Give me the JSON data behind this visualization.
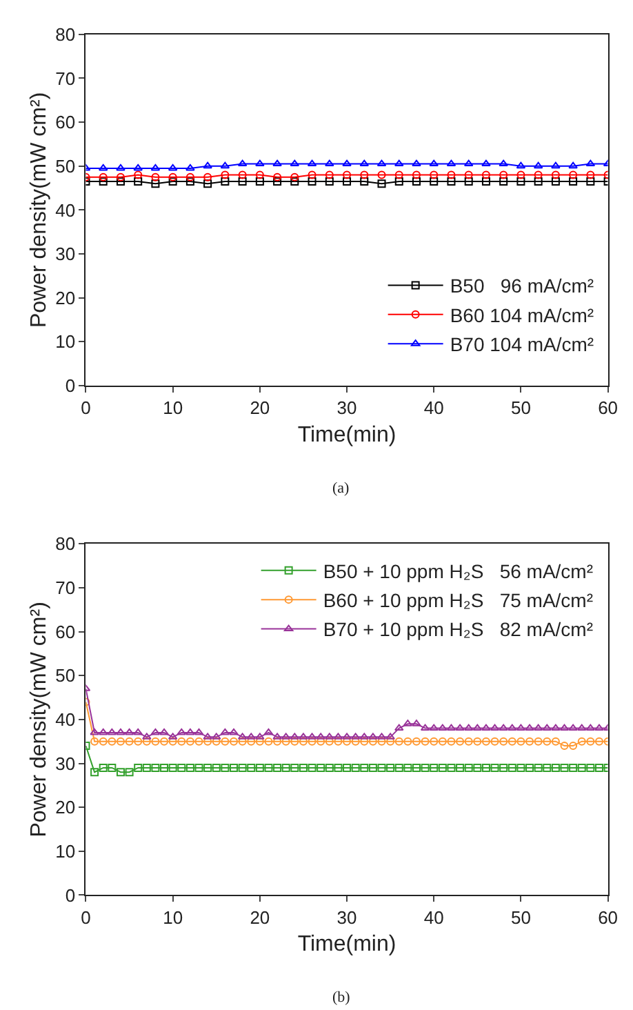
{
  "chart_data": [
    {
      "type": "line",
      "xlabel": "Time(min)",
      "ylabel": "Power density(mW cm²)",
      "xlim": [
        0,
        60
      ],
      "xticks": [
        0,
        10,
        20,
        30,
        40,
        50,
        60
      ],
      "ylim": [
        0,
        80
      ],
      "yticks": [
        0,
        10,
        20,
        30,
        40,
        50,
        60,
        70,
        80
      ],
      "legend": "bottom right",
      "annotations": [
        "(a)"
      ],
      "x": [
        0,
        2,
        4,
        6,
        8,
        10,
        12,
        14,
        16,
        18,
        20,
        22,
        24,
        26,
        28,
        30,
        32,
        34,
        36,
        38,
        40,
        42,
        44,
        46,
        48,
        50,
        52,
        54,
        56,
        58,
        60
      ],
      "series": [
        {
          "name": "B50   96 mA/cm²",
          "color": "#000000",
          "marker": "square",
          "values": [
            46.5,
            46.5,
            46.5,
            46.5,
            46,
            46.5,
            46.5,
            46,
            46.5,
            46.5,
            46.5,
            46.5,
            46.5,
            46.5,
            46.5,
            46.5,
            46.5,
            46,
            46.5,
            46.5,
            46.5,
            46.5,
            46.5,
            46.5,
            46.5,
            46.5,
            46.5,
            46.5,
            46.5,
            46.5,
            46.5
          ]
        },
        {
          "name": "B60 104 mA/cm²",
          "color": "#ff0000",
          "marker": "circle",
          "values": [
            47.5,
            47.5,
            47.5,
            48,
            47.5,
            47.5,
            47.5,
            47.5,
            48,
            48,
            48,
            47.5,
            47.5,
            48,
            48,
            48,
            48,
            48,
            48,
            48,
            48,
            48,
            48,
            48,
            48,
            48,
            48,
            48,
            48,
            48,
            48
          ]
        },
        {
          "name": "B70 104 mA/cm²",
          "color": "#0000ff",
          "marker": "triangle",
          "values": [
            49.5,
            49.5,
            49.5,
            49.5,
            49.5,
            49.5,
            49.5,
            50,
            50,
            50.5,
            50.5,
            50.5,
            50.5,
            50.5,
            50.5,
            50.5,
            50.5,
            50.5,
            50.5,
            50.5,
            50.5,
            50.5,
            50.5,
            50.5,
            50.5,
            50,
            50,
            50,
            50,
            50.5,
            50.5
          ]
        }
      ]
    },
    {
      "type": "line",
      "xlabel": "Time(min)",
      "ylabel": "Power density(mW cm²)",
      "xlim": [
        0,
        60
      ],
      "xticks": [
        0,
        10,
        20,
        30,
        40,
        50,
        60
      ],
      "ylim": [
        0,
        80
      ],
      "yticks": [
        0,
        10,
        20,
        30,
        40,
        50,
        60,
        70,
        80
      ],
      "legend": "top right",
      "annotations": [
        "(b)"
      ],
      "x": [
        0,
        1,
        2,
        3,
        4,
        5,
        6,
        7,
        8,
        9,
        10,
        11,
        12,
        13,
        14,
        15,
        16,
        17,
        18,
        19,
        20,
        21,
        22,
        23,
        24,
        25,
        26,
        27,
        28,
        29,
        30,
        31,
        32,
        33,
        34,
        35,
        36,
        37,
        38,
        39,
        40,
        41,
        42,
        43,
        44,
        45,
        46,
        47,
        48,
        49,
        50,
        51,
        52,
        53,
        54,
        55,
        56,
        57,
        58,
        59,
        60
      ],
      "series": [
        {
          "name": "B50 + 10 ppm H₂S   56 mA/cm²",
          "color": "#33a02c",
          "marker": "square",
          "values": [
            34,
            28,
            29,
            29,
            28,
            28,
            29,
            29,
            29,
            29,
            29,
            29,
            29,
            29,
            29,
            29,
            29,
            29,
            29,
            29,
            29,
            29,
            29,
            29,
            29,
            29,
            29,
            29,
            29,
            29,
            29,
            29,
            29,
            29,
            29,
            29,
            29,
            29,
            29,
            29,
            29,
            29,
            29,
            29,
            29,
            29,
            29,
            29,
            29,
            29,
            29,
            29,
            29,
            29,
            29,
            29,
            29,
            29,
            29,
            29,
            29
          ]
        },
        {
          "name": "B60 + 10 ppm H₂S   75 mA/cm²",
          "color": "#ff9933",
          "marker": "circle",
          "values": [
            44,
            35,
            35,
            35,
            35,
            35,
            35,
            35,
            35,
            35,
            35,
            35,
            35,
            35,
            35,
            35,
            35,
            35,
            35,
            35,
            35,
            35,
            35,
            35,
            35,
            35,
            35,
            35,
            35,
            35,
            35,
            35,
            35,
            35,
            35,
            35,
            35,
            35,
            35,
            35,
            35,
            35,
            35,
            35,
            35,
            35,
            35,
            35,
            35,
            35,
            35,
            35,
            35,
            35,
            35,
            34,
            34,
            35,
            35,
            35,
            35
          ]
        },
        {
          "name": "B70 + 10 ppm H₂S   82 mA/cm²",
          "color": "#993399",
          "marker": "triangle",
          "values": [
            47,
            37,
            37,
            37,
            37,
            37,
            37,
            36,
            37,
            37,
            36,
            37,
            37,
            37,
            36,
            36,
            37,
            37,
            36,
            36,
            36,
            37,
            36,
            36,
            36,
            36,
            36,
            36,
            36,
            36,
            36,
            36,
            36,
            36,
            36,
            36,
            38,
            39,
            39,
            38,
            38,
            38,
            38,
            38,
            38,
            38,
            38,
            38,
            38,
            38,
            38,
            38,
            38,
            38,
            38,
            38,
            38,
            38,
            38,
            38,
            38
          ]
        }
      ]
    }
  ]
}
